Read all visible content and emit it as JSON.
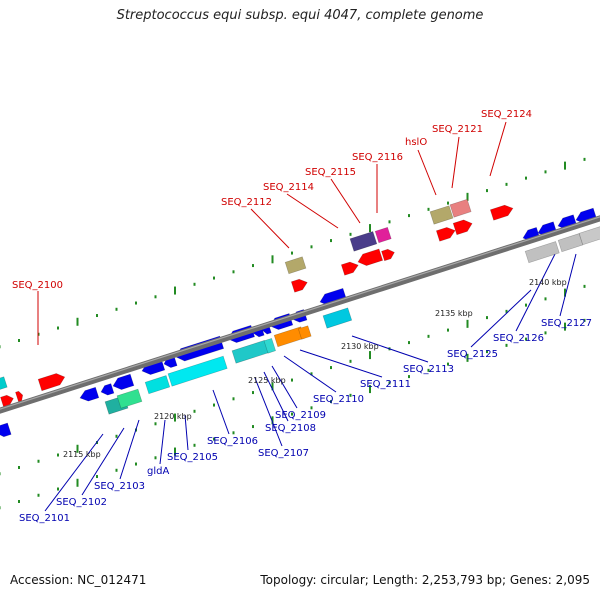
{
  "title": "Streptococcus equi subsp. equi 4047, complete genome",
  "accession": "Accession: NC_012471",
  "summary": "Topology: circular; Length: 2,253,793 bp; Genes: 2,095",
  "scale_ticks": [
    "2115 kbp",
    "2120 kbp",
    "2125 kbp",
    "2130 kbp",
    "2135 kbp",
    "2140 kbp"
  ],
  "upper_labels": [
    "SEQ_2100",
    "SEQ_2112",
    "SEQ_2114",
    "SEQ_2115",
    "SEQ_2116",
    "hslO",
    "SEQ_2121",
    "SEQ_2124"
  ],
  "lower_labels": [
    "SEQ_2101",
    "SEQ_2102",
    "SEQ_2103",
    "gldA",
    "SEQ_2105",
    "SEQ_2106",
    "SEQ_2107",
    "SEQ_2108",
    "SEQ_2109",
    "SEQ_2110",
    "SEQ_2111",
    "SEQ_2113",
    "SEQ_2125",
    "SEQ_2126",
    "SEQ_2127"
  ],
  "colors": {
    "backbone": "#6e6e6e",
    "forward_gene": "#ff0000",
    "reverse_gene": "#0000ee",
    "label_upper": "#d00000",
    "label_lower": "#0000b0",
    "dots": "#228b22"
  }
}
